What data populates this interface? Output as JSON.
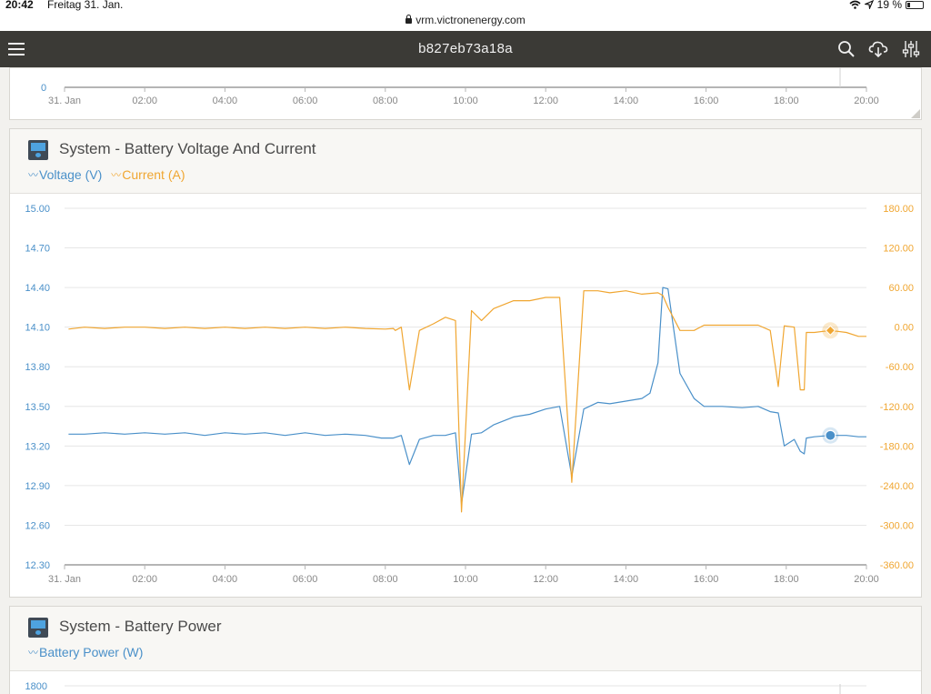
{
  "status_bar": {
    "time": "20:42",
    "date": "Freitag 31. Jan.",
    "battery": "19 %",
    "battery_fraction": 0.19
  },
  "url": "vrm.victronenergy.com",
  "header": {
    "title": "b827eb73a18a"
  },
  "icons": {
    "menu": "hamburger-icon",
    "search": "search-icon",
    "download": "cloud-download-icon",
    "settings": "sliders-icon"
  },
  "top_chart": {
    "y_tick": "0",
    "x_ticks": [
      "31. Jan",
      "02:00",
      "04:00",
      "06:00",
      "08:00",
      "10:00",
      "12:00",
      "14:00",
      "16:00",
      "18:00",
      "20:00"
    ]
  },
  "voltage_card": {
    "title": "System - Battery Voltage And Current",
    "legend": [
      {
        "label": "Voltage (V)",
        "color": "#4a90c9"
      },
      {
        "label": "Current (A)",
        "color": "#f0a631"
      }
    ]
  },
  "power_card": {
    "title": "System - Battery Power",
    "legend": [
      {
        "label": "Battery Power (W)",
        "color": "#4a90c9"
      }
    ],
    "y_tick": "1800"
  },
  "chart_data": {
    "type": "line",
    "title": "System - Battery Voltage And Current",
    "x_ticks": [
      "31. Jan",
      "02:00",
      "04:00",
      "06:00",
      "08:00",
      "10:00",
      "12:00",
      "14:00",
      "16:00",
      "18:00",
      "20:00"
    ],
    "xlim": [
      0,
      20
    ],
    "left_axis": {
      "ylim": [
        12.3,
        15.0
      ],
      "ticks": [
        "15.00",
        "14.70",
        "14.40",
        "14.10",
        "13.80",
        "13.50",
        "13.20",
        "12.90",
        "12.60",
        "12.30"
      ]
    },
    "right_axis": {
      "ylim": [
        -360,
        180
      ],
      "ticks": [
        "180.00",
        "120.00",
        "60.00",
        "0.00",
        "-60.00",
        "-120.00",
        "-180.00",
        "-240.00",
        "-300.00",
        "-360.00"
      ]
    },
    "grid": true,
    "legend_position": "top-left",
    "series": [
      {
        "name": "Voltage (V)",
        "axis": "left",
        "color": "#4a90c9",
        "points": [
          [
            0.1,
            13.29
          ],
          [
            0.5,
            13.29
          ],
          [
            1,
            13.3
          ],
          [
            1.5,
            13.29
          ],
          [
            2,
            13.3
          ],
          [
            2.5,
            13.29
          ],
          [
            3,
            13.3
          ],
          [
            3.5,
            13.28
          ],
          [
            4,
            13.3
          ],
          [
            4.5,
            13.29
          ],
          [
            5,
            13.3
          ],
          [
            5.5,
            13.28
          ],
          [
            6,
            13.3
          ],
          [
            6.5,
            13.28
          ],
          [
            7,
            13.29
          ],
          [
            7.5,
            13.28
          ],
          [
            7.9,
            13.26
          ],
          [
            8.2,
            13.26
          ],
          [
            8.4,
            13.28
          ],
          [
            8.6,
            13.06
          ],
          [
            8.85,
            13.25
          ],
          [
            9.2,
            13.28
          ],
          [
            9.5,
            13.28
          ],
          [
            9.75,
            13.3
          ],
          [
            9.9,
            12.76
          ],
          [
            10.15,
            13.29
          ],
          [
            10.4,
            13.3
          ],
          [
            10.7,
            13.36
          ],
          [
            11.2,
            13.42
          ],
          [
            11.6,
            13.44
          ],
          [
            12,
            13.48
          ],
          [
            12.35,
            13.5
          ],
          [
            12.65,
            12.97
          ],
          [
            12.95,
            13.48
          ],
          [
            13.3,
            13.53
          ],
          [
            13.6,
            13.52
          ],
          [
            14,
            13.54
          ],
          [
            14.4,
            13.56
          ],
          [
            14.6,
            13.6
          ],
          [
            14.8,
            13.83
          ],
          [
            14.92,
            14.4
          ],
          [
            15.05,
            14.39
          ],
          [
            15.35,
            13.75
          ],
          [
            15.7,
            13.56
          ],
          [
            15.95,
            13.5
          ],
          [
            16.4,
            13.5
          ],
          [
            16.9,
            13.49
          ],
          [
            17.3,
            13.5
          ],
          [
            17.6,
            13.46
          ],
          [
            17.8,
            13.45
          ],
          [
            17.95,
            13.2
          ],
          [
            18.2,
            13.25
          ],
          [
            18.35,
            13.16
          ],
          [
            18.45,
            13.14
          ],
          [
            18.5,
            13.26
          ],
          [
            18.7,
            13.27
          ],
          [
            19.1,
            13.28
          ],
          [
            19.5,
            13.28
          ],
          [
            19.8,
            13.27
          ],
          [
            20,
            13.27
          ]
        ]
      },
      {
        "name": "Current (A)",
        "axis": "right",
        "color": "#f0a631",
        "points": [
          [
            0.1,
            -3
          ],
          [
            0.5,
            0
          ],
          [
            1,
            -2
          ],
          [
            1.5,
            0
          ],
          [
            2,
            0
          ],
          [
            2.5,
            -2
          ],
          [
            3,
            0
          ],
          [
            3.5,
            -2
          ],
          [
            4,
            0
          ],
          [
            4.5,
            -2
          ],
          [
            5,
            0
          ],
          [
            5.5,
            -2
          ],
          [
            6,
            0
          ],
          [
            6.5,
            -2
          ],
          [
            7,
            0
          ],
          [
            7.5,
            -2
          ],
          [
            8,
            -3
          ],
          [
            8.2,
            -2
          ],
          [
            8.25,
            -5
          ],
          [
            8.4,
            0
          ],
          [
            8.6,
            -95
          ],
          [
            8.85,
            -5
          ],
          [
            9.2,
            5
          ],
          [
            9.5,
            15
          ],
          [
            9.75,
            10
          ],
          [
            9.9,
            -280
          ],
          [
            10.15,
            25
          ],
          [
            10.4,
            10
          ],
          [
            10.7,
            28
          ],
          [
            11.2,
            40
          ],
          [
            11.6,
            40
          ],
          [
            12,
            45
          ],
          [
            12.35,
            45
          ],
          [
            12.65,
            -235
          ],
          [
            12.95,
            55
          ],
          [
            13.3,
            55
          ],
          [
            13.6,
            52
          ],
          [
            14,
            55
          ],
          [
            14.4,
            50
          ],
          [
            14.8,
            52
          ],
          [
            14.92,
            48
          ],
          [
            15.05,
            30
          ],
          [
            15.35,
            -5
          ],
          [
            15.7,
            -5
          ],
          [
            15.95,
            3
          ],
          [
            16.4,
            3
          ],
          [
            16.9,
            3
          ],
          [
            17.3,
            3
          ],
          [
            17.6,
            -5
          ],
          [
            17.8,
            -90
          ],
          [
            17.95,
            2
          ],
          [
            18.2,
            0
          ],
          [
            18.35,
            -95
          ],
          [
            18.45,
            -95
          ],
          [
            18.5,
            -8
          ],
          [
            18.7,
            -8
          ],
          [
            19.1,
            -5
          ],
          [
            19.5,
            -8
          ],
          [
            19.8,
            -14
          ],
          [
            20,
            -14
          ]
        ]
      }
    ],
    "markers": [
      {
        "series": "Voltage (V)",
        "x": 19.1,
        "y": 13.28
      },
      {
        "series": "Current (A)",
        "x": 19.1,
        "y": -5
      }
    ]
  }
}
